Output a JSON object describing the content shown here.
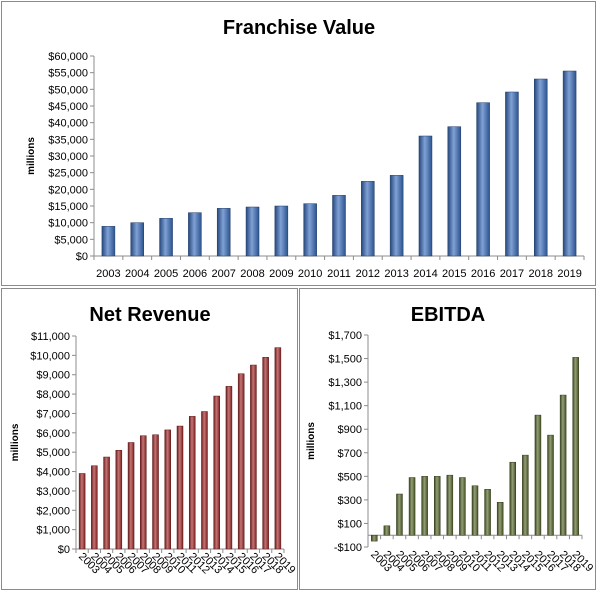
{
  "chart_data": [
    {
      "id": "top",
      "type": "bar",
      "title": "Franchise Value",
      "ylabel": "millions",
      "xlabel": "",
      "ylim": [
        0,
        60000
      ],
      "yticks": [
        0,
        5000,
        10000,
        15000,
        20000,
        25000,
        30000,
        35000,
        40000,
        45000,
        50000,
        55000,
        60000
      ],
      "ytick_labels": [
        "$0",
        "$5,000",
        "$10,000",
        "$15,000",
        "$20,000",
        "$25,000",
        "$30,000",
        "$35,000",
        "$40,000",
        "$45,000",
        "$50,000",
        "$55,000",
        "$60,000"
      ],
      "categories": [
        "2003",
        "2004",
        "2005",
        "2006",
        "2007",
        "2008",
        "2009",
        "2010",
        "2011",
        "2012",
        "2013",
        "2014",
        "2015",
        "2016",
        "2017",
        "2018",
        "2019"
      ],
      "values": [
        8900,
        10000,
        11300,
        13000,
        14300,
        14700,
        15000,
        15700,
        18200,
        22400,
        24200,
        36000,
        38800,
        46000,
        49200,
        53100,
        55500
      ],
      "color": "#3a6fbf",
      "xlabel_rotation": "none",
      "grid": false
    },
    {
      "id": "bl",
      "type": "bar",
      "title": "Net Revenue",
      "ylabel": "millions",
      "xlabel": "",
      "ylim": [
        0,
        11000
      ],
      "yticks": [
        0,
        1000,
        2000,
        3000,
        4000,
        5000,
        6000,
        7000,
        8000,
        9000,
        10000,
        11000
      ],
      "ytick_labels": [
        "$0",
        "$1,000",
        "$2,000",
        "$3,000",
        "$4,000",
        "$5,000",
        "$6,000",
        "$7,000",
        "$8,000",
        "$9,000",
        "$10,000",
        "$11,000"
      ],
      "categories": [
        "2003",
        "2004",
        "2005",
        "2006",
        "2007",
        "2008",
        "2009",
        "2010",
        "2011",
        "2012",
        "2013",
        "2014",
        "2015",
        "2016",
        "2017",
        "2018",
        "2019"
      ],
      "values": [
        3900,
        4300,
        4750,
        5100,
        5500,
        5850,
        5900,
        6150,
        6350,
        6850,
        7100,
        7900,
        8400,
        9050,
        9500,
        9900,
        10400
      ],
      "color": "#a52a2a",
      "xlabel_rotation": "slanted",
      "grid": false
    },
    {
      "id": "br",
      "type": "bar",
      "title": "EBITDA",
      "ylabel": "millions",
      "xlabel": "",
      "ylim": [
        -100,
        1700
      ],
      "yticks": [
        -100,
        100,
        300,
        500,
        700,
        900,
        1100,
        1300,
        1500,
        1700
      ],
      "ytick_labels": [
        "-$100",
        "$100",
        "$300",
        "$500",
        "$700",
        "$900",
        "$1,100",
        "$1,300",
        "$1,500",
        "$1,700"
      ],
      "categories": [
        "2003",
        "2004",
        "2005",
        "2006",
        "2007",
        "2008",
        "2009",
        "2010",
        "2011",
        "2012",
        "2013",
        "2014",
        "2015",
        "2016",
        "2017",
        "2018",
        "2019"
      ],
      "values": [
        -50,
        80,
        350,
        490,
        500,
        500,
        510,
        490,
        420,
        390,
        280,
        620,
        680,
        1020,
        850,
        1190,
        1510
      ],
      "color": "#5a6b2e",
      "xlabel_rotation": "slanted",
      "grid": false
    }
  ]
}
